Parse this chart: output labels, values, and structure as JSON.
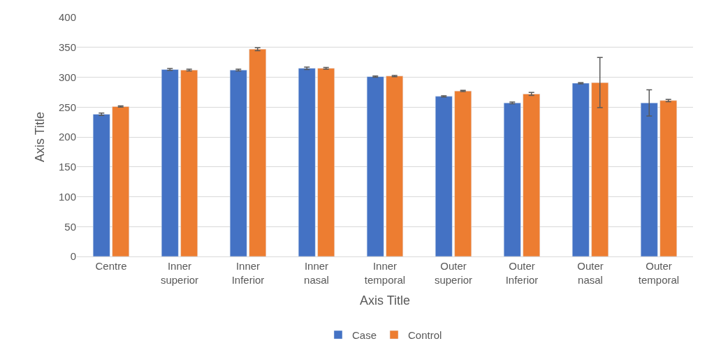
{
  "chart_data": {
    "type": "bar",
    "xlabel": "Axis Title",
    "ylabel": "Axis Title",
    "categories": [
      "Centre",
      "Inner superior",
      "Inner Inferior",
      "Inner nasal",
      "Inner temporal",
      "Outer superior",
      "Outer Inferior",
      "Outer nasal",
      "Outer temporal"
    ],
    "series": [
      {
        "name": "Case",
        "color": "#4472c4",
        "values": [
          238,
          313,
          312,
          315,
          301,
          268,
          257,
          290,
          257
        ],
        "errors": [
          2,
          1.5,
          1.5,
          2,
          1,
          1,
          1.5,
          1,
          22
        ]
      },
      {
        "name": "Control",
        "color": "#ed7d31",
        "values": [
          251,
          312,
          347,
          315,
          302,
          277,
          272,
          291,
          261
        ],
        "errors": [
          1,
          1.5,
          2.5,
          1.5,
          1,
          1,
          2.5,
          42,
          2
        ]
      }
    ],
    "ylim": [
      0,
      400
    ],
    "yticks": [
      0,
      50,
      100,
      150,
      200,
      250,
      300,
      350,
      400
    ],
    "grid": "y",
    "legend": "bottom"
  }
}
